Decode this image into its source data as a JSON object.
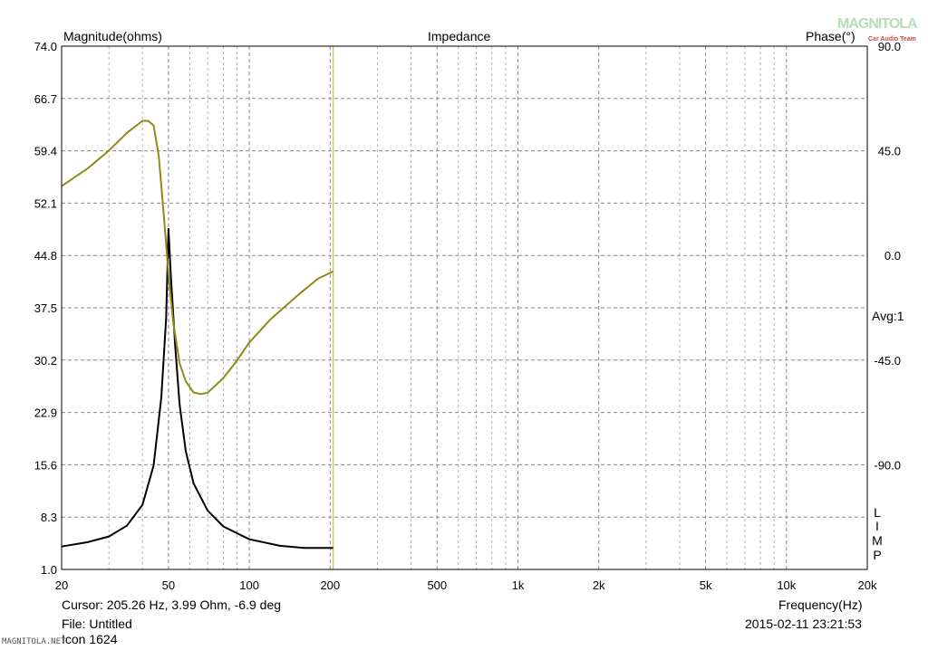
{
  "header": {
    "left_axis_title": "Magnitude(ohms)",
    "title": "Impedance",
    "right_axis_title": "Phase(°)"
  },
  "watermark": {
    "text": "MAGNITOLA",
    "subtext": "Car Audio Team"
  },
  "side_text": {
    "avg": "Avg:1",
    "limp": [
      "L",
      "I",
      "M",
      "P"
    ]
  },
  "footer": {
    "cursor": "Cursor: 205.26 Hz, 3.99 Ohm, -6.9 deg",
    "file": "File: Untitled",
    "name": "Icon 1624",
    "xlabel": "Frequency(Hz)",
    "timestamp": "2015-02-11 23:21:53",
    "credit": "MAGNITOLA.NET"
  },
  "chart_data": {
    "type": "line",
    "title": "Impedance",
    "xlabel": "Frequency(Hz)",
    "ylabel": "Magnitude(ohms)",
    "y2label": "Phase(°)",
    "xscale": "log",
    "xlim": [
      20,
      20000
    ],
    "ylim": [
      1.0,
      74.0
    ],
    "y2lim": [
      -135,
      90
    ],
    "x_ticks": [
      20,
      50,
      100,
      200,
      500,
      1000,
      2000,
      5000,
      10000,
      20000
    ],
    "x_tick_labels": [
      "20",
      "50",
      "100",
      "200",
      "500",
      "1k",
      "2k",
      "5k",
      "10k",
      "20k"
    ],
    "y_ticks": [
      74.0,
      66.7,
      59.4,
      52.1,
      44.8,
      37.5,
      30.2,
      22.9,
      15.6,
      8.3,
      1.0
    ],
    "y_tick_labels": [
      "74.0",
      "66.7",
      "59.4",
      "52.1",
      "44.8",
      "37.5",
      "30.2",
      "22.9",
      "15.6",
      "8.3",
      "1.0"
    ],
    "y2_ticks": [
      90,
      45,
      0,
      -45,
      -90
    ],
    "y2_tick_labels": [
      "90.0",
      "45.0",
      "0.0",
      "-45.0",
      "-90.0"
    ],
    "grid": true,
    "cursor_x": 205.26,
    "series": [
      {
        "axis": "left",
        "color": "#000000",
        "x": [
          20,
          25,
          30,
          35,
          40,
          44,
          47,
          49,
          50,
          51,
          53,
          55,
          58,
          62,
          70,
          80,
          100,
          130,
          160,
          205
        ],
        "y": [
          4.2,
          4.8,
          5.6,
          7.1,
          10.0,
          15.5,
          25.0,
          36.0,
          48.5,
          42.0,
          32.0,
          24.0,
          17.5,
          13.0,
          9.2,
          7.0,
          5.2,
          4.3,
          4.0,
          3.99
        ]
      },
      {
        "axis": "right",
        "color": "#8b8b16",
        "x": [
          20,
          25,
          30,
          35,
          40,
          42,
          44,
          46,
          48,
          50,
          52,
          55,
          58,
          62,
          66,
          70,
          80,
          90,
          100,
          120,
          150,
          180,
          205
        ],
        "y": [
          29.8,
          37.4,
          45.1,
          52.7,
          57.9,
          57.9,
          55.9,
          42.8,
          17.5,
          -7.9,
          -28.3,
          -46.4,
          -54.1,
          -58.9,
          -59.6,
          -59.0,
          -52.7,
          -45.1,
          -37.4,
          -27.4,
          -17.5,
          -10.0,
          -6.9
        ]
      }
    ]
  }
}
